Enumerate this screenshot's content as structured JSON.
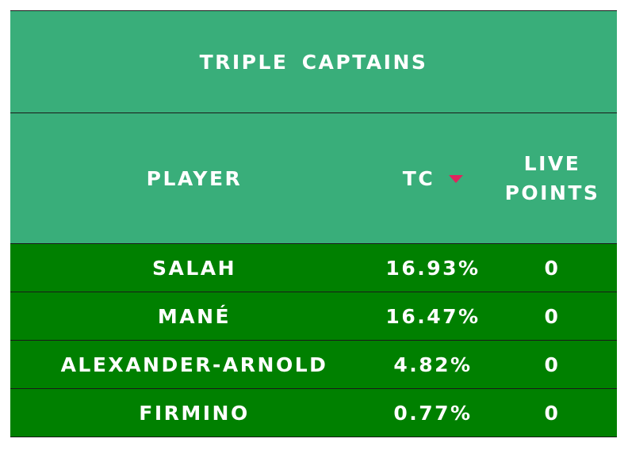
{
  "colors": {
    "header_bg": "#39ae7a",
    "row_bg": "#008000",
    "sort_arrow": "#e0245e"
  },
  "table": {
    "title": "TRIPLE CAPTAINS",
    "columns": {
      "player": "PLAYER",
      "tc": "TC",
      "live_points_line1": "LIVE",
      "live_points_line2": "POINTS"
    },
    "sort_icon": "sort-desc-triangle",
    "rows": [
      {
        "player": "SALAH",
        "tc": "16.93%",
        "live_points": "0"
      },
      {
        "player": "MANÉ",
        "tc": "16.47%",
        "live_points": "0"
      },
      {
        "player": "ALEXANDER-ARNOLD",
        "tc": "4.82%",
        "live_points": "0"
      },
      {
        "player": "FIRMINO",
        "tc": "0.77%",
        "live_points": "0"
      }
    ]
  }
}
